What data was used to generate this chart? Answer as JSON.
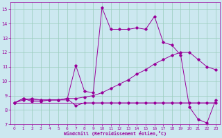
{
  "xlabel": "Windchill (Refroidissement éolien,°C)",
  "bg_color": "#cce8f0",
  "grid_color": "#99ccbb",
  "line_color": "#990099",
  "xlim": [
    -0.5,
    23.5
  ],
  "ylim": [
    7,
    15.5
  ],
  "xticks": [
    0,
    1,
    2,
    3,
    4,
    5,
    6,
    7,
    8,
    9,
    10,
    11,
    12,
    13,
    14,
    15,
    16,
    17,
    18,
    19,
    20,
    21,
    22,
    23
  ],
  "yticks": [
    7,
    8,
    9,
    10,
    11,
    12,
    13,
    14,
    15
  ],
  "series_A_x": [
    0,
    1,
    2,
    3,
    4,
    5,
    6,
    7,
    8,
    9,
    10,
    11,
    12,
    13,
    14,
    15,
    16,
    17,
    18,
    19,
    20,
    21,
    22,
    23
  ],
  "series_A_y": [
    8.5,
    8.8,
    8.6,
    8.6,
    8.7,
    8.7,
    8.8,
    8.3,
    8.5,
    8.5,
    8.5,
    8.5,
    8.5,
    8.5,
    8.5,
    8.5,
    8.5,
    8.5,
    8.5,
    8.5,
    8.5,
    8.5,
    8.5,
    8.5
  ],
  "series_B_x": [
    0,
    1,
    2,
    3,
    4,
    5,
    6,
    7,
    8,
    9,
    10,
    11,
    12,
    13,
    14,
    15,
    16,
    17,
    18,
    19,
    20,
    21,
    22,
    23
  ],
  "series_B_y": [
    8.5,
    8.7,
    8.8,
    8.7,
    8.7,
    8.7,
    8.8,
    8.8,
    8.9,
    9.0,
    9.2,
    9.5,
    9.8,
    10.1,
    10.5,
    10.8,
    11.2,
    11.5,
    11.8,
    12.0,
    12.0,
    11.5,
    11.0,
    10.8
  ],
  "series_C_x": [
    0,
    1,
    2,
    3,
    4,
    5,
    6,
    7,
    8,
    9,
    10,
    11,
    12,
    13,
    14,
    15,
    16,
    17,
    18,
    19,
    20,
    21,
    22,
    23
  ],
  "series_C_y": [
    8.5,
    8.8,
    8.7,
    8.7,
    8.7,
    8.7,
    8.7,
    11.1,
    9.3,
    9.2,
    15.1,
    13.6,
    13.6,
    13.6,
    13.7,
    13.6,
    14.5,
    12.7,
    12.5,
    11.8,
    8.2,
    7.35,
    7.1,
    8.7
  ],
  "series_D_x": [
    0,
    1,
    2,
    3,
    4,
    5,
    6,
    7,
    8,
    9,
    10,
    11,
    12,
    13,
    14,
    15,
    16,
    17,
    18,
    19,
    20,
    21,
    22,
    23
  ],
  "series_D_y": [
    8.5,
    8.5,
    8.5,
    8.5,
    8.5,
    8.5,
    8.5,
    8.5,
    8.5,
    8.5,
    8.5,
    8.5,
    8.5,
    8.5,
    8.5,
    8.5,
    8.5,
    8.5,
    8.5,
    8.5,
    8.5,
    8.5,
    8.5,
    8.5
  ]
}
